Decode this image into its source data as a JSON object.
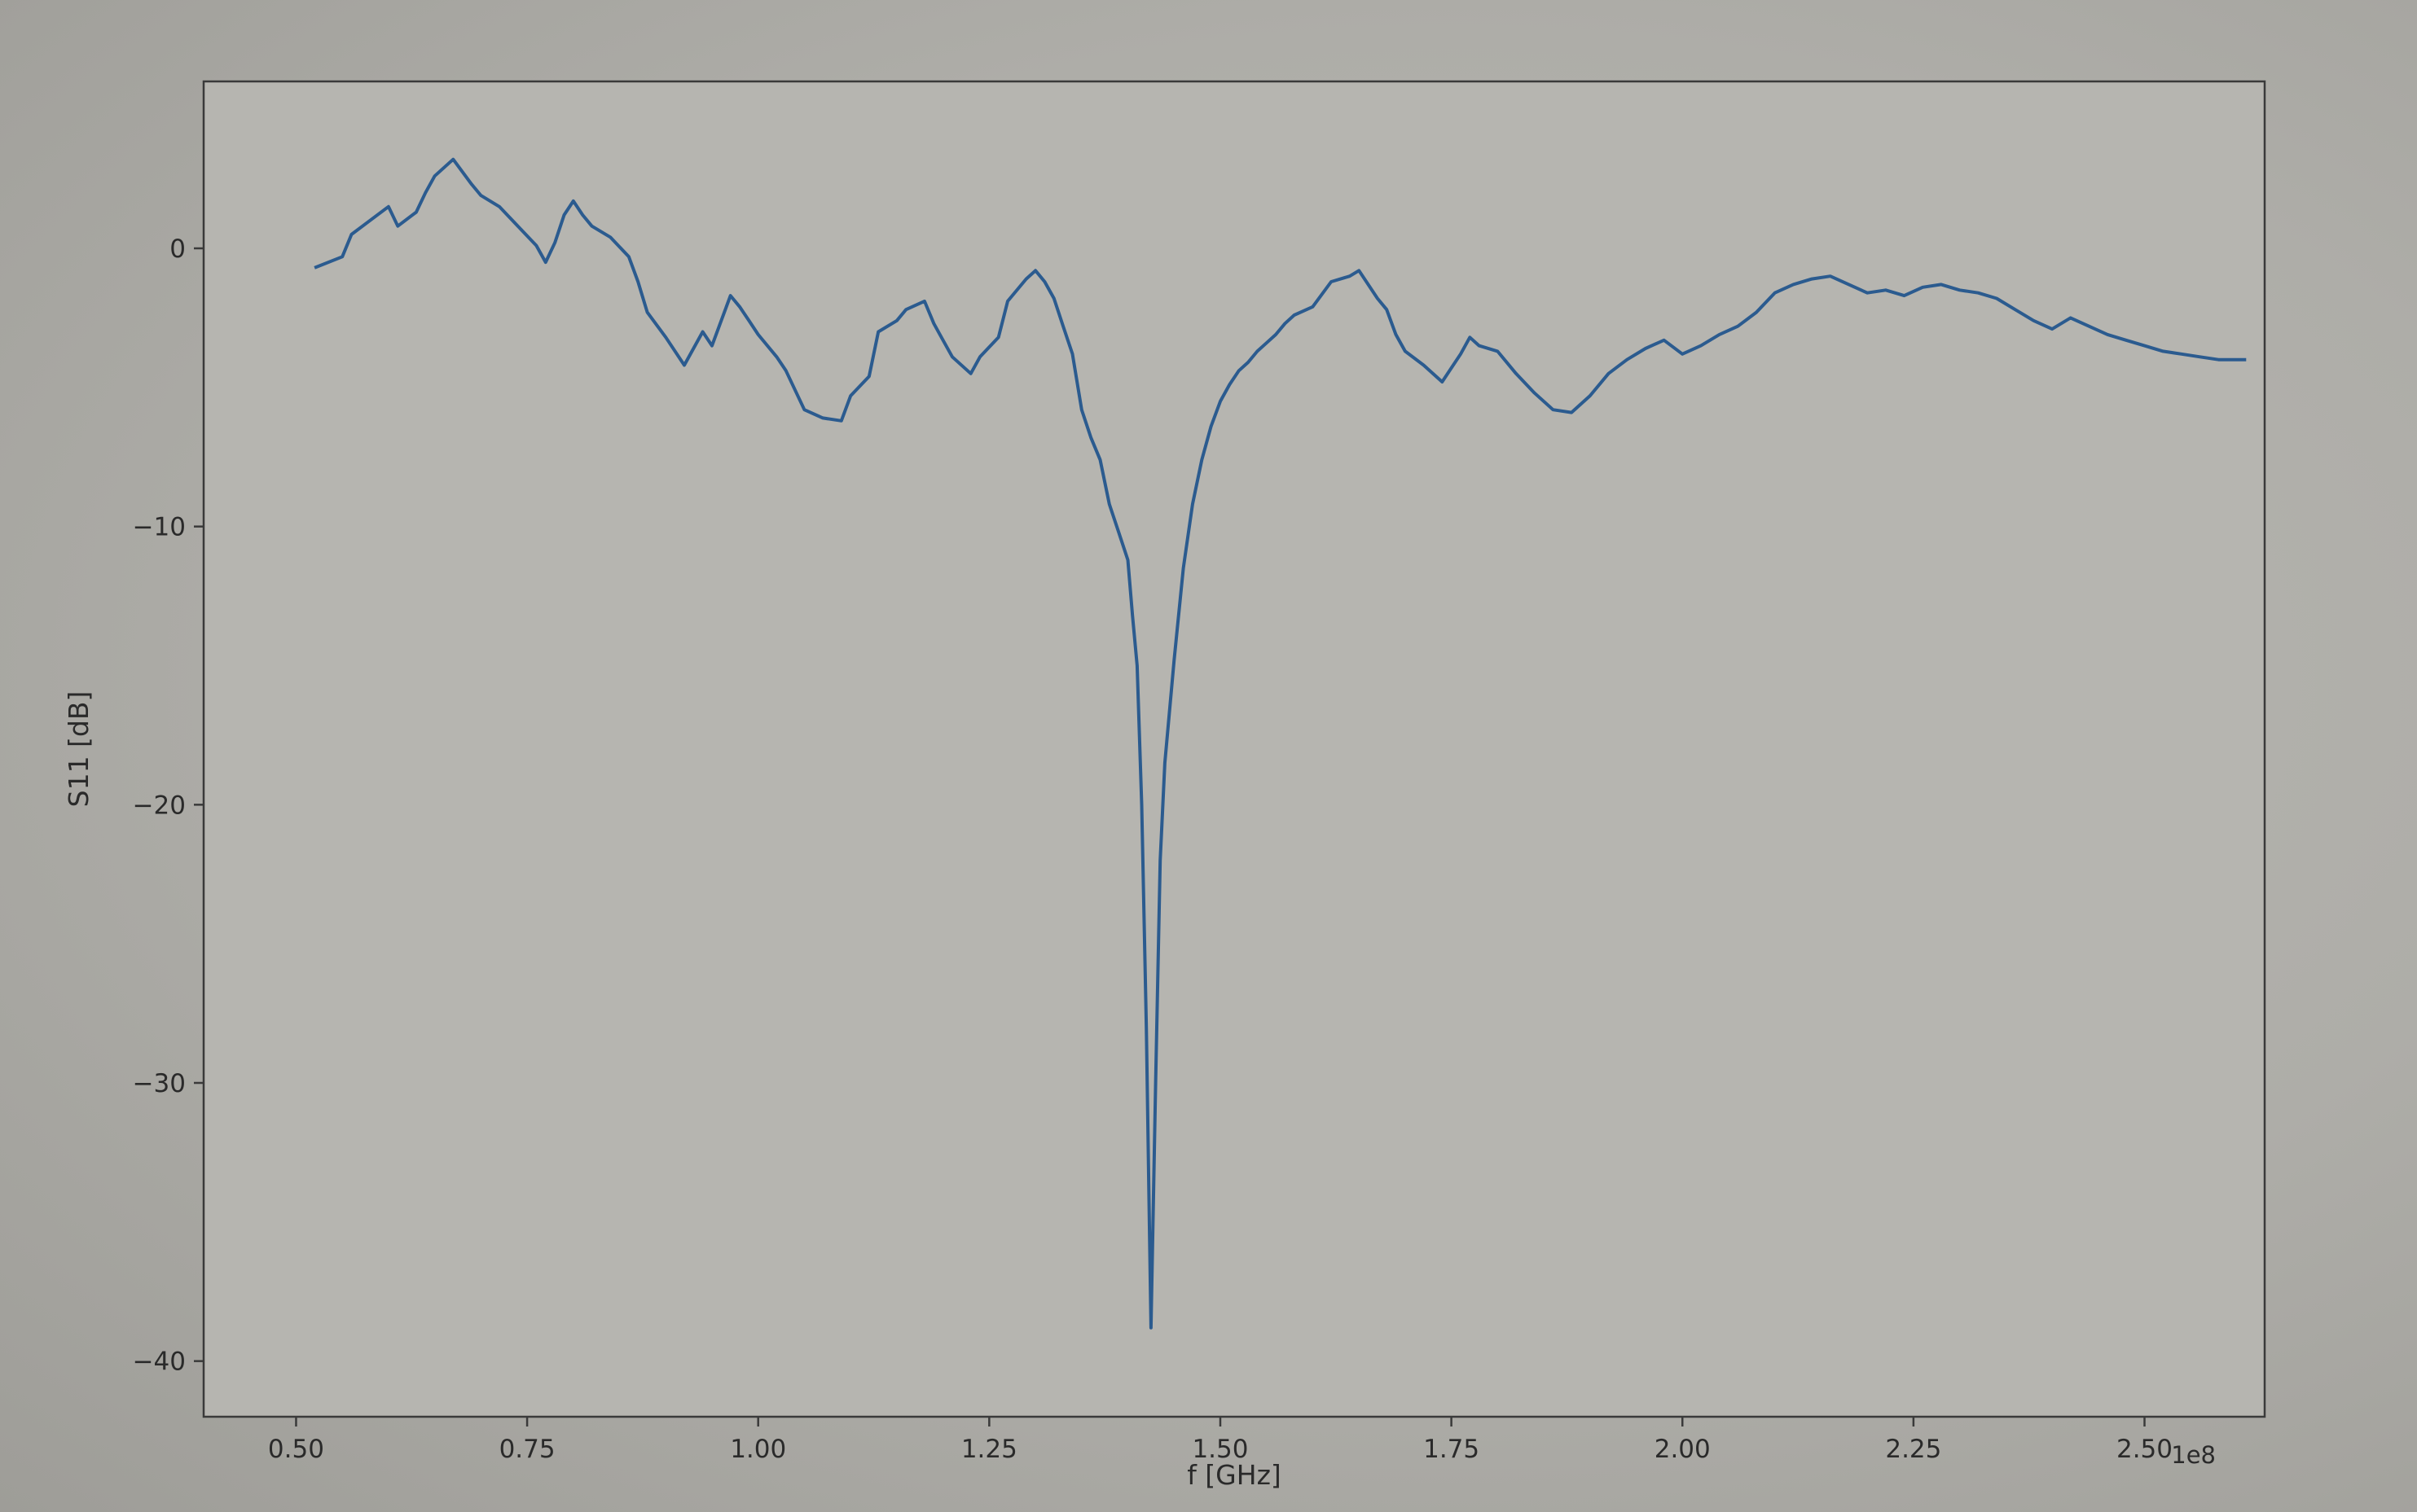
{
  "chart_data": {
    "type": "line",
    "title": "",
    "xlabel": "f [GHz]",
    "ylabel": "S11 [dB]",
    "x_offset_label": "1e8",
    "xlim": [
      0.4,
      2.63
    ],
    "ylim": [
      -42,
      6
    ],
    "xticks": [
      0.5,
      0.75,
      1.0,
      1.25,
      1.5,
      1.75,
      2.0,
      2.25,
      2.5
    ],
    "xtick_labels": [
      "0.50",
      "0.75",
      "1.00",
      "1.25",
      "1.50",
      "1.75",
      "2.00",
      "2.25",
      "2.50"
    ],
    "yticks": [
      0,
      -10,
      -20,
      -30,
      -40
    ],
    "ytick_labels": [
      "0",
      "−10",
      "−20",
      "−30",
      "−40"
    ],
    "grid": false,
    "line_color": "#2b5b8f",
    "series": [
      {
        "name": "",
        "x": [
          0.52,
          0.55,
          0.56,
          0.58,
          0.6,
          0.61,
          0.63,
          0.64,
          0.65,
          0.67,
          0.69,
          0.7,
          0.72,
          0.74,
          0.76,
          0.77,
          0.78,
          0.79,
          0.8,
          0.81,
          0.82,
          0.84,
          0.86,
          0.87,
          0.88,
          0.9,
          0.92,
          0.94,
          0.95,
          0.97,
          0.98,
          0.99,
          1.0,
          1.02,
          1.03,
          1.05,
          1.07,
          1.09,
          1.1,
          1.12,
          1.13,
          1.15,
          1.16,
          1.18,
          1.19,
          1.2,
          1.21,
          1.23,
          1.24,
          1.26,
          1.27,
          1.29,
          1.3,
          1.31,
          1.32,
          1.33,
          1.34,
          1.35,
          1.36,
          1.37,
          1.38,
          1.39,
          1.4,
          1.405,
          1.41,
          1.415,
          1.42,
          1.425,
          1.43,
          1.435,
          1.44,
          1.45,
          1.46,
          1.47,
          1.48,
          1.49,
          1.5,
          1.51,
          1.52,
          1.53,
          1.54,
          1.55,
          1.56,
          1.57,
          1.58,
          1.6,
          1.62,
          1.64,
          1.65,
          1.67,
          1.68,
          1.69,
          1.7,
          1.72,
          1.74,
          1.76,
          1.77,
          1.78,
          1.8,
          1.82,
          1.84,
          1.86,
          1.88,
          1.9,
          1.92,
          1.94,
          1.96,
          1.98,
          2.0,
          2.02,
          2.04,
          2.06,
          2.08,
          2.1,
          2.12,
          2.14,
          2.16,
          2.18,
          2.2,
          2.22,
          2.24,
          2.26,
          2.28,
          2.3,
          2.32,
          2.34,
          2.36,
          2.38,
          2.4,
          2.42,
          2.44,
          2.46,
          2.48,
          2.5,
          2.52,
          2.54,
          2.56,
          2.58,
          2.61
        ],
        "y": [
          -0.7,
          -0.3,
          0.5,
          1.0,
          1.5,
          0.8,
          1.3,
          2.0,
          2.6,
          3.2,
          2.3,
          1.9,
          1.5,
          0.8,
          0.1,
          -0.5,
          0.2,
          1.2,
          1.7,
          1.2,
          0.8,
          0.4,
          -0.3,
          -1.2,
          -2.3,
          -3.2,
          -4.2,
          -3.0,
          -3.5,
          -1.7,
          -2.1,
          -2.6,
          -3.1,
          -3.9,
          -4.4,
          -5.8,
          -6.1,
          -6.2,
          -5.3,
          -4.6,
          -3.0,
          -2.6,
          -2.2,
          -1.9,
          -2.7,
          -3.3,
          -3.9,
          -4.5,
          -3.9,
          -3.2,
          -1.9,
          -1.1,
          -0.8,
          -1.2,
          -1.8,
          -2.8,
          -3.8,
          -5.8,
          -6.8,
          -7.6,
          -9.2,
          -10.2,
          -11.2,
          -13.2,
          -15.0,
          -20.0,
          -28.0,
          -38.8,
          -30.0,
          -22.0,
          -18.5,
          -14.8,
          -11.5,
          -9.2,
          -7.6,
          -6.4,
          -5.5,
          -4.9,
          -4.4,
          -4.1,
          -3.7,
          -3.4,
          -3.1,
          -2.7,
          -2.4,
          -2.1,
          -1.2,
          -1.0,
          -0.8,
          -1.8,
          -2.2,
          -3.1,
          -3.7,
          -4.2,
          -4.8,
          -3.8,
          -3.2,
          -3.5,
          -3.7,
          -4.5,
          -5.2,
          -5.8,
          -5.9,
          -5.3,
          -4.5,
          -4.0,
          -3.6,
          -3.3,
          -3.8,
          -3.5,
          -3.1,
          -2.8,
          -2.3,
          -1.6,
          -1.3,
          -1.1,
          -1.0,
          -1.3,
          -1.6,
          -1.5,
          -1.7,
          -1.4,
          -1.3,
          -1.5,
          -1.6,
          -1.8,
          -2.2,
          -2.6,
          -2.9,
          -2.5,
          -2.8,
          -3.1,
          -3.3,
          -3.5,
          -3.7,
          -3.8,
          -3.9,
          -4.0,
          -4.0
        ]
      }
    ]
  }
}
